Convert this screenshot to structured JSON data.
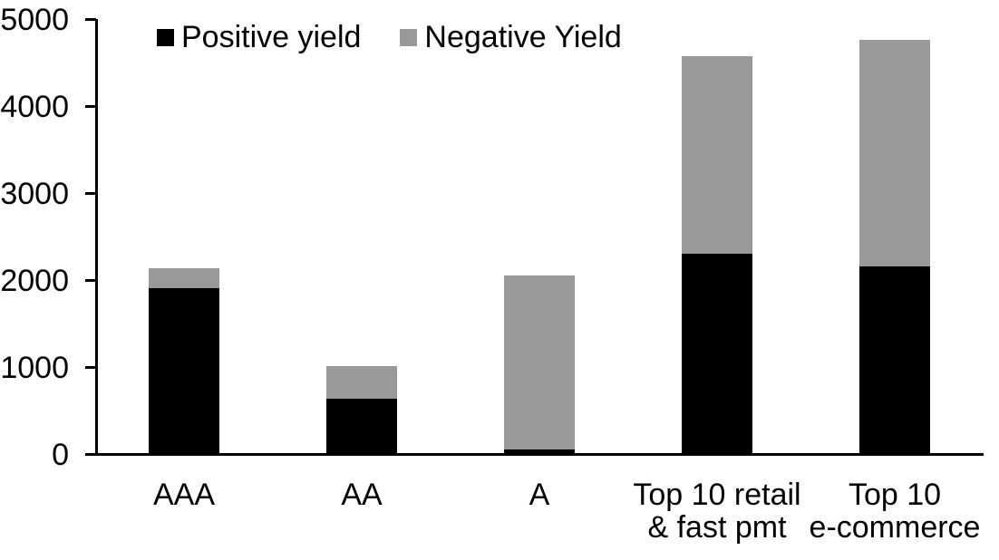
{
  "chart_data": {
    "type": "bar",
    "stacked": true,
    "title": "",
    "xlabel": "",
    "ylabel": "",
    "categories": [
      "AAA",
      "AA",
      "A",
      "Top 10 retail & fast pmt",
      "Top 10 e-commerce"
    ],
    "category_label_lines": [
      [
        "AAA"
      ],
      [
        "AA"
      ],
      [
        "A"
      ],
      [
        "Top 10 retail",
        "& fast pmt"
      ],
      [
        "Top 10",
        "e-commerce"
      ]
    ],
    "series": [
      {
        "name": "Positive yield",
        "color": "#000000",
        "values": [
          1900,
          620,
          40,
          2290,
          2150
        ]
      },
      {
        "name": "Negative Yield",
        "color": "#999999",
        "values": [
          230,
          380,
          2000,
          2270,
          2600
        ]
      }
    ],
    "ylim": [
      0,
      5000
    ],
    "yticks": [
      0,
      1000,
      2000,
      3000,
      4000,
      5000
    ],
    "grid": false,
    "legend_position": "top-left",
    "axis_color": "#000000",
    "background_color": "#ffffff"
  }
}
